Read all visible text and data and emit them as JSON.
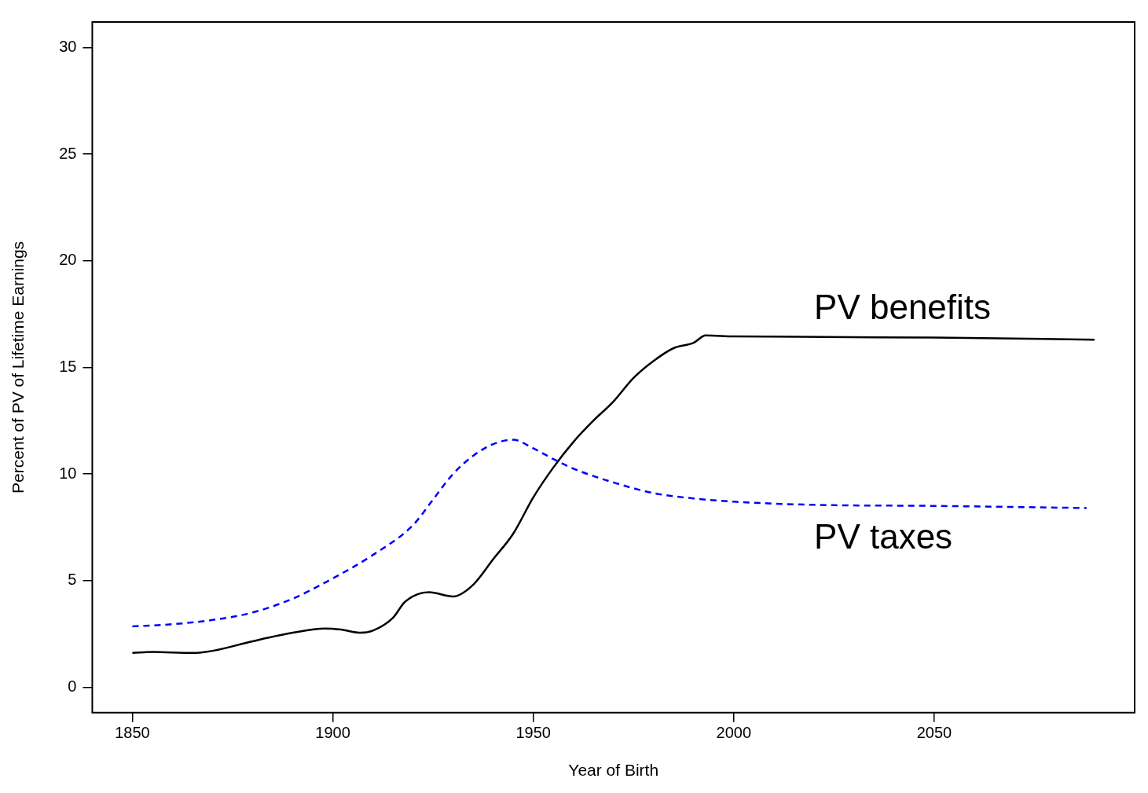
{
  "chart_data": {
    "type": "line",
    "xlabel": "Year of Birth",
    "ylabel": "Percent of PV of Lifetime Earnings",
    "xlim": [
      1840,
      2100
    ],
    "xticks": [
      1850,
      1900,
      1950,
      2000,
      2050
    ],
    "ylim": [
      -1.2,
      31.2
    ],
    "yticks": [
      0,
      5,
      10,
      15,
      20,
      25,
      30
    ],
    "grid": false,
    "legend": false,
    "series": [
      {
        "name": "PV benefits",
        "color": "#000000",
        "line_style": "solid",
        "x": [
          1850,
          1855,
          1865,
          1870,
          1880,
          1890,
          1898,
          1902,
          1907,
          1910,
          1915,
          1918,
          1924,
          1930,
          1935,
          1940,
          1945,
          1950,
          1955,
          1960,
          1965,
          1970,
          1975,
          1980,
          1985,
          1990,
          1993,
          2000,
          2050,
          2090
        ],
        "values": [
          1.6,
          1.65,
          1.6,
          1.7,
          2.15,
          2.55,
          2.75,
          2.7,
          2.55,
          2.65,
          3.25,
          4.0,
          4.45,
          4.25,
          4.8,
          6.0,
          7.2,
          8.9,
          10.3,
          11.5,
          12.5,
          13.4,
          14.5,
          15.3,
          15.9,
          16.15,
          16.5,
          16.45,
          16.4,
          16.3
        ]
      },
      {
        "name": "PV taxes",
        "color": "#0000ff",
        "line_style": "dashed",
        "x": [
          1850,
          1860,
          1870,
          1880,
          1890,
          1900,
          1910,
          1920,
          1925,
          1930,
          1935,
          1940,
          1945,
          1950,
          1955,
          1960,
          1970,
          1980,
          1990,
          2000,
          2020,
          2050,
          2088
        ],
        "values": [
          2.85,
          2.95,
          3.15,
          3.5,
          4.15,
          5.1,
          6.2,
          7.6,
          8.8,
          10.0,
          10.85,
          11.4,
          11.6,
          11.2,
          10.7,
          10.25,
          9.6,
          9.1,
          8.85,
          8.7,
          8.55,
          8.5,
          8.4
        ]
      }
    ]
  }
}
